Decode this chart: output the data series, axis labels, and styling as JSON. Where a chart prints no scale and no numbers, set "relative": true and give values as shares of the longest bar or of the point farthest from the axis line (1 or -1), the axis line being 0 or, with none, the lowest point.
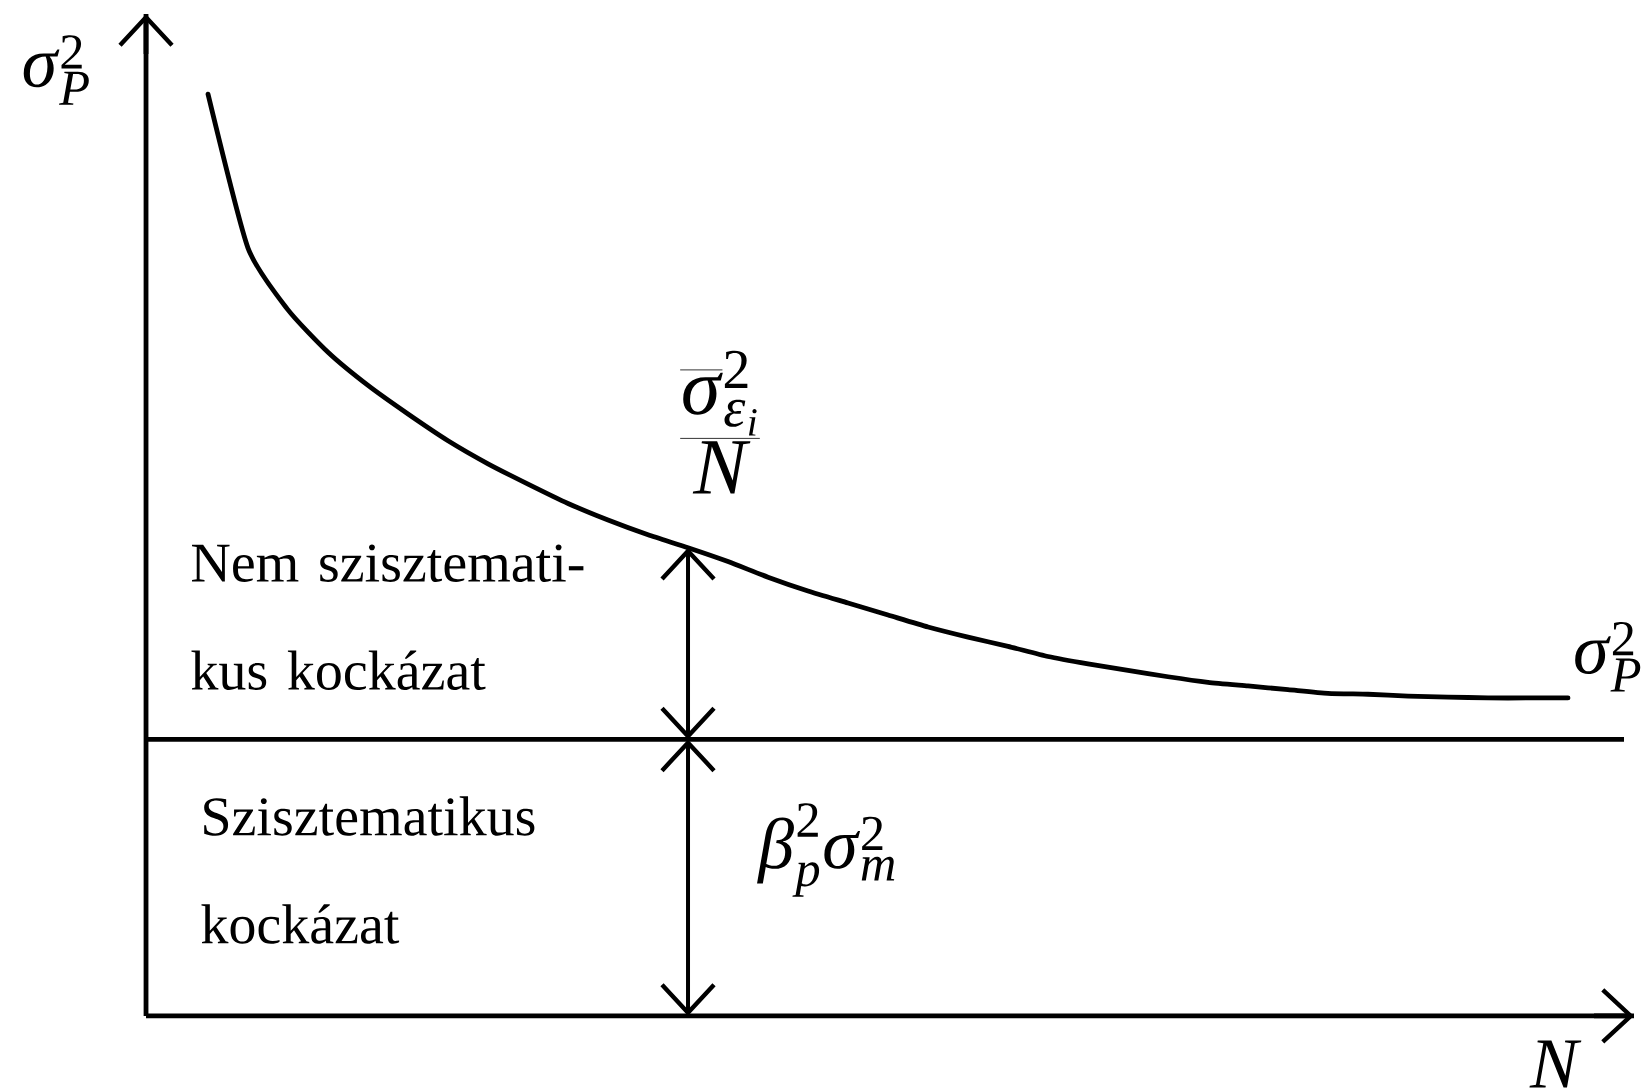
{
  "chart_data": {
    "type": "line",
    "relative": true,
    "ylabel": "\\sigma_P^2",
    "xlabel": "N",
    "categories": [
      null,
      null,
      null,
      null,
      null,
      null,
      null,
      null,
      null,
      null,
      null,
      null,
      null,
      null,
      null,
      null,
      null,
      null,
      null,
      null,
      null,
      null,
      null,
      null,
      null,
      null,
      null,
      null,
      null,
      null,
      null,
      null,
      null,
      null,
      null
    ],
    "series": [
      {
        "name": "\\sigma_P^2",
        "color": "#000000",
        "values": [
          1.0,
          0.833,
          0.766,
          0.72,
          0.684,
          0.653,
          0.624,
          0.599,
          0.577,
          0.556,
          0.538,
          0.522,
          0.508,
          0.493,
          0.476,
          0.461,
          0.448,
          0.435,
          0.422,
          0.411,
          0.401,
          0.39,
          0.382,
          0.375,
          0.368,
          0.362,
          0.358,
          0.354,
          0.35,
          0.349,
          0.347,
          0.346,
          0.345,
          0.345,
          0.345
        ]
      }
    ],
    "ref_lines": [
      {
        "axis": "y",
        "value": 0.3
      }
    ],
    "annotations": [
      "\\frac{\\overline{\\sigma}^{2}_{\\epsilon_i}}{N}",
      "Nem szisztemati-kus kockázat",
      "Szisztematikus kockázat",
      "\\beta_p^2\\sigma_m^2"
    ]
  }
}
